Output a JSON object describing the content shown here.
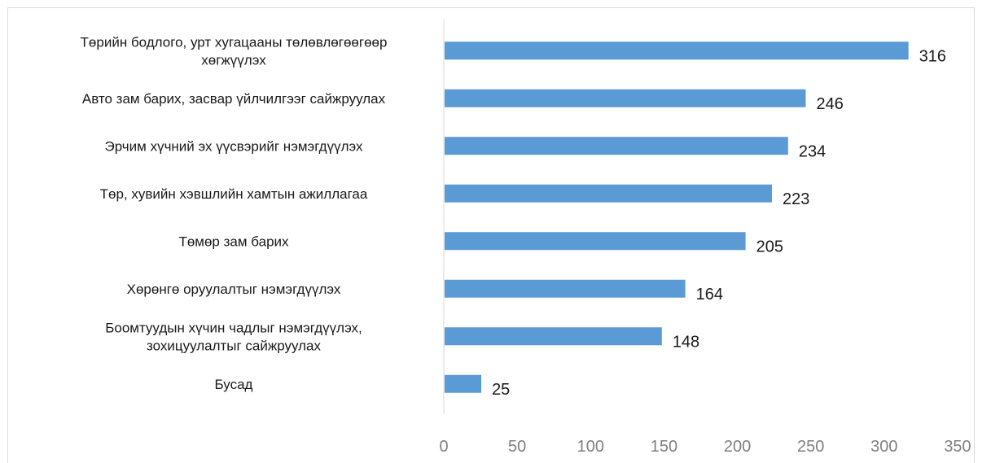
{
  "chart_data": {
    "type": "bar",
    "orientation": "horizontal",
    "categories": [
      [
        "Төрийн бодлого, урт хугацааны төлөвлөгөөгөөр",
        "хөгжүүлэх"
      ],
      [
        "Авто зам барих, засвар үйлчилгээг сайжруулах"
      ],
      [
        "Эрчим хүчний эх үүсвэрийг нэмэгдүүлэх"
      ],
      [
        "Төр, хувийн хэвшлийн хамтын ажиллагаа"
      ],
      [
        "Төмөр зам барих"
      ],
      [
        "Хөрөнгө оруулалтыг нэмэгдүүлэх"
      ],
      [
        "Боомтуудын хүчин чадлыг нэмэгдүүлэх,",
        "зохицуулалтыг сайжруулах"
      ],
      [
        "Бусад"
      ]
    ],
    "values": [
      316,
      246,
      234,
      223,
      205,
      164,
      148,
      25
    ],
    "xlim": [
      0,
      350
    ],
    "xticks": [
      0,
      50,
      100,
      150,
      200,
      250,
      300,
      350
    ],
    "bar_color": "#5b9bd5",
    "grid": false,
    "legend": "none"
  }
}
